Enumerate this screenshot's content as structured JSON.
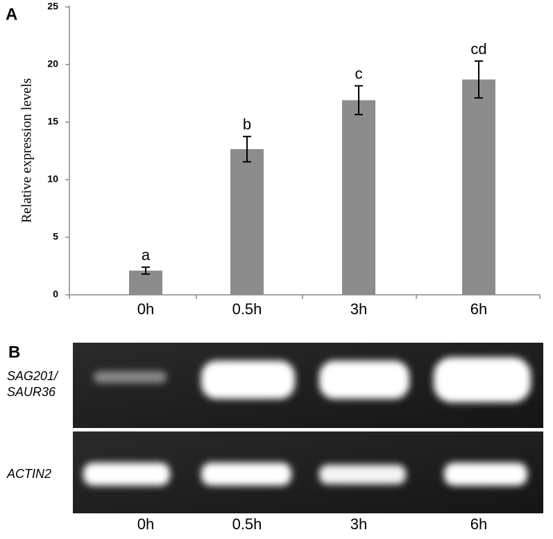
{
  "chart_data": {
    "type": "bar",
    "panel_label": "A",
    "ylabel": "Relative expression levels",
    "categories": [
      "0h",
      "0.5h",
      "3h",
      "6h"
    ],
    "values": [
      2.1,
      12.65,
      16.9,
      18.7
    ],
    "errors": [
      0.3,
      1.1,
      1.25,
      1.6
    ],
    "annotations": [
      "a",
      "b",
      "c",
      "cd"
    ],
    "color": "#8c8c8c",
    "ylim": [
      0,
      25
    ],
    "yticks": [
      0,
      5,
      10,
      15,
      20,
      25
    ],
    "grid": false
  },
  "gel": {
    "panel_label": "B",
    "rows": [
      {
        "label_lines": [
          "SAG201/",
          "SAUR36"
        ]
      },
      {
        "label_lines": [
          "ACTIN2"
        ]
      }
    ],
    "lanes": [
      "0h",
      "0.5h",
      "3h",
      "6h"
    ]
  }
}
